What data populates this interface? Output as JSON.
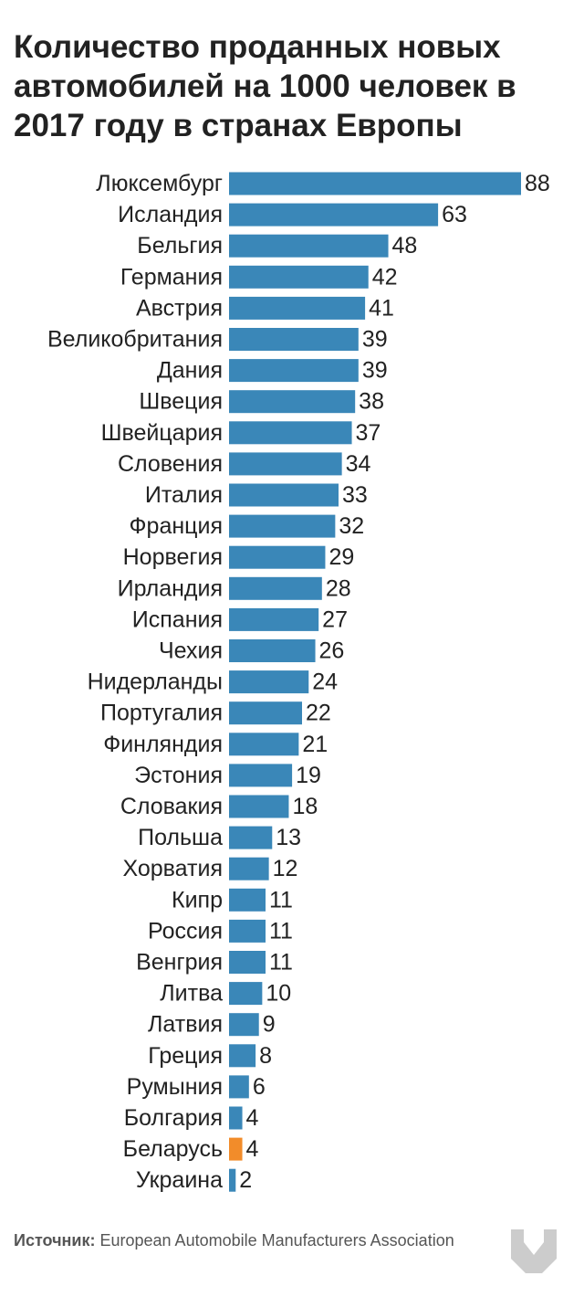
{
  "chart_data": {
    "type": "bar",
    "orientation": "horizontal",
    "title": "Количество проданных новых автомобилей на 1000 человек в 2017 году в странах Европы",
    "categories": [
      "Люксембург",
      "Исландия",
      "Бельгия",
      "Германия",
      "Австрия",
      "Великобритания",
      "Дания",
      "Швеция",
      "Швейцария",
      "Словения",
      "Италия",
      "Франция",
      "Норвегия",
      "Ирландия",
      "Испания",
      "Чехия",
      "Нидерланды",
      "Португалия",
      "Финляндия",
      "Эстония",
      "Словакия",
      "Польша",
      "Хорватия",
      "Кипр",
      "Россия",
      "Венгрия",
      "Литва",
      "Латвия",
      "Греция",
      "Румыния",
      "Болгария",
      "Беларусь",
      "Украина"
    ],
    "values": [
      88,
      63,
      48,
      42,
      41,
      39,
      39,
      38,
      37,
      34,
      33,
      32,
      29,
      28,
      27,
      26,
      24,
      22,
      21,
      19,
      18,
      13,
      12,
      11,
      11,
      11,
      10,
      9,
      8,
      6,
      4,
      4,
      2
    ],
    "highlight": "Беларусь",
    "colors": {
      "bar": "#3a87b8",
      "highlight": "#f28c2a"
    },
    "xlim": [
      0,
      88
    ],
    "grid": false,
    "axes_visible": false,
    "data_labels": true
  },
  "source": {
    "label": "Источник:",
    "text": "European Automobile Manufacturers Association"
  },
  "logo": {
    "icon": "download-arrow-icon",
    "color": "#cccccc"
  }
}
